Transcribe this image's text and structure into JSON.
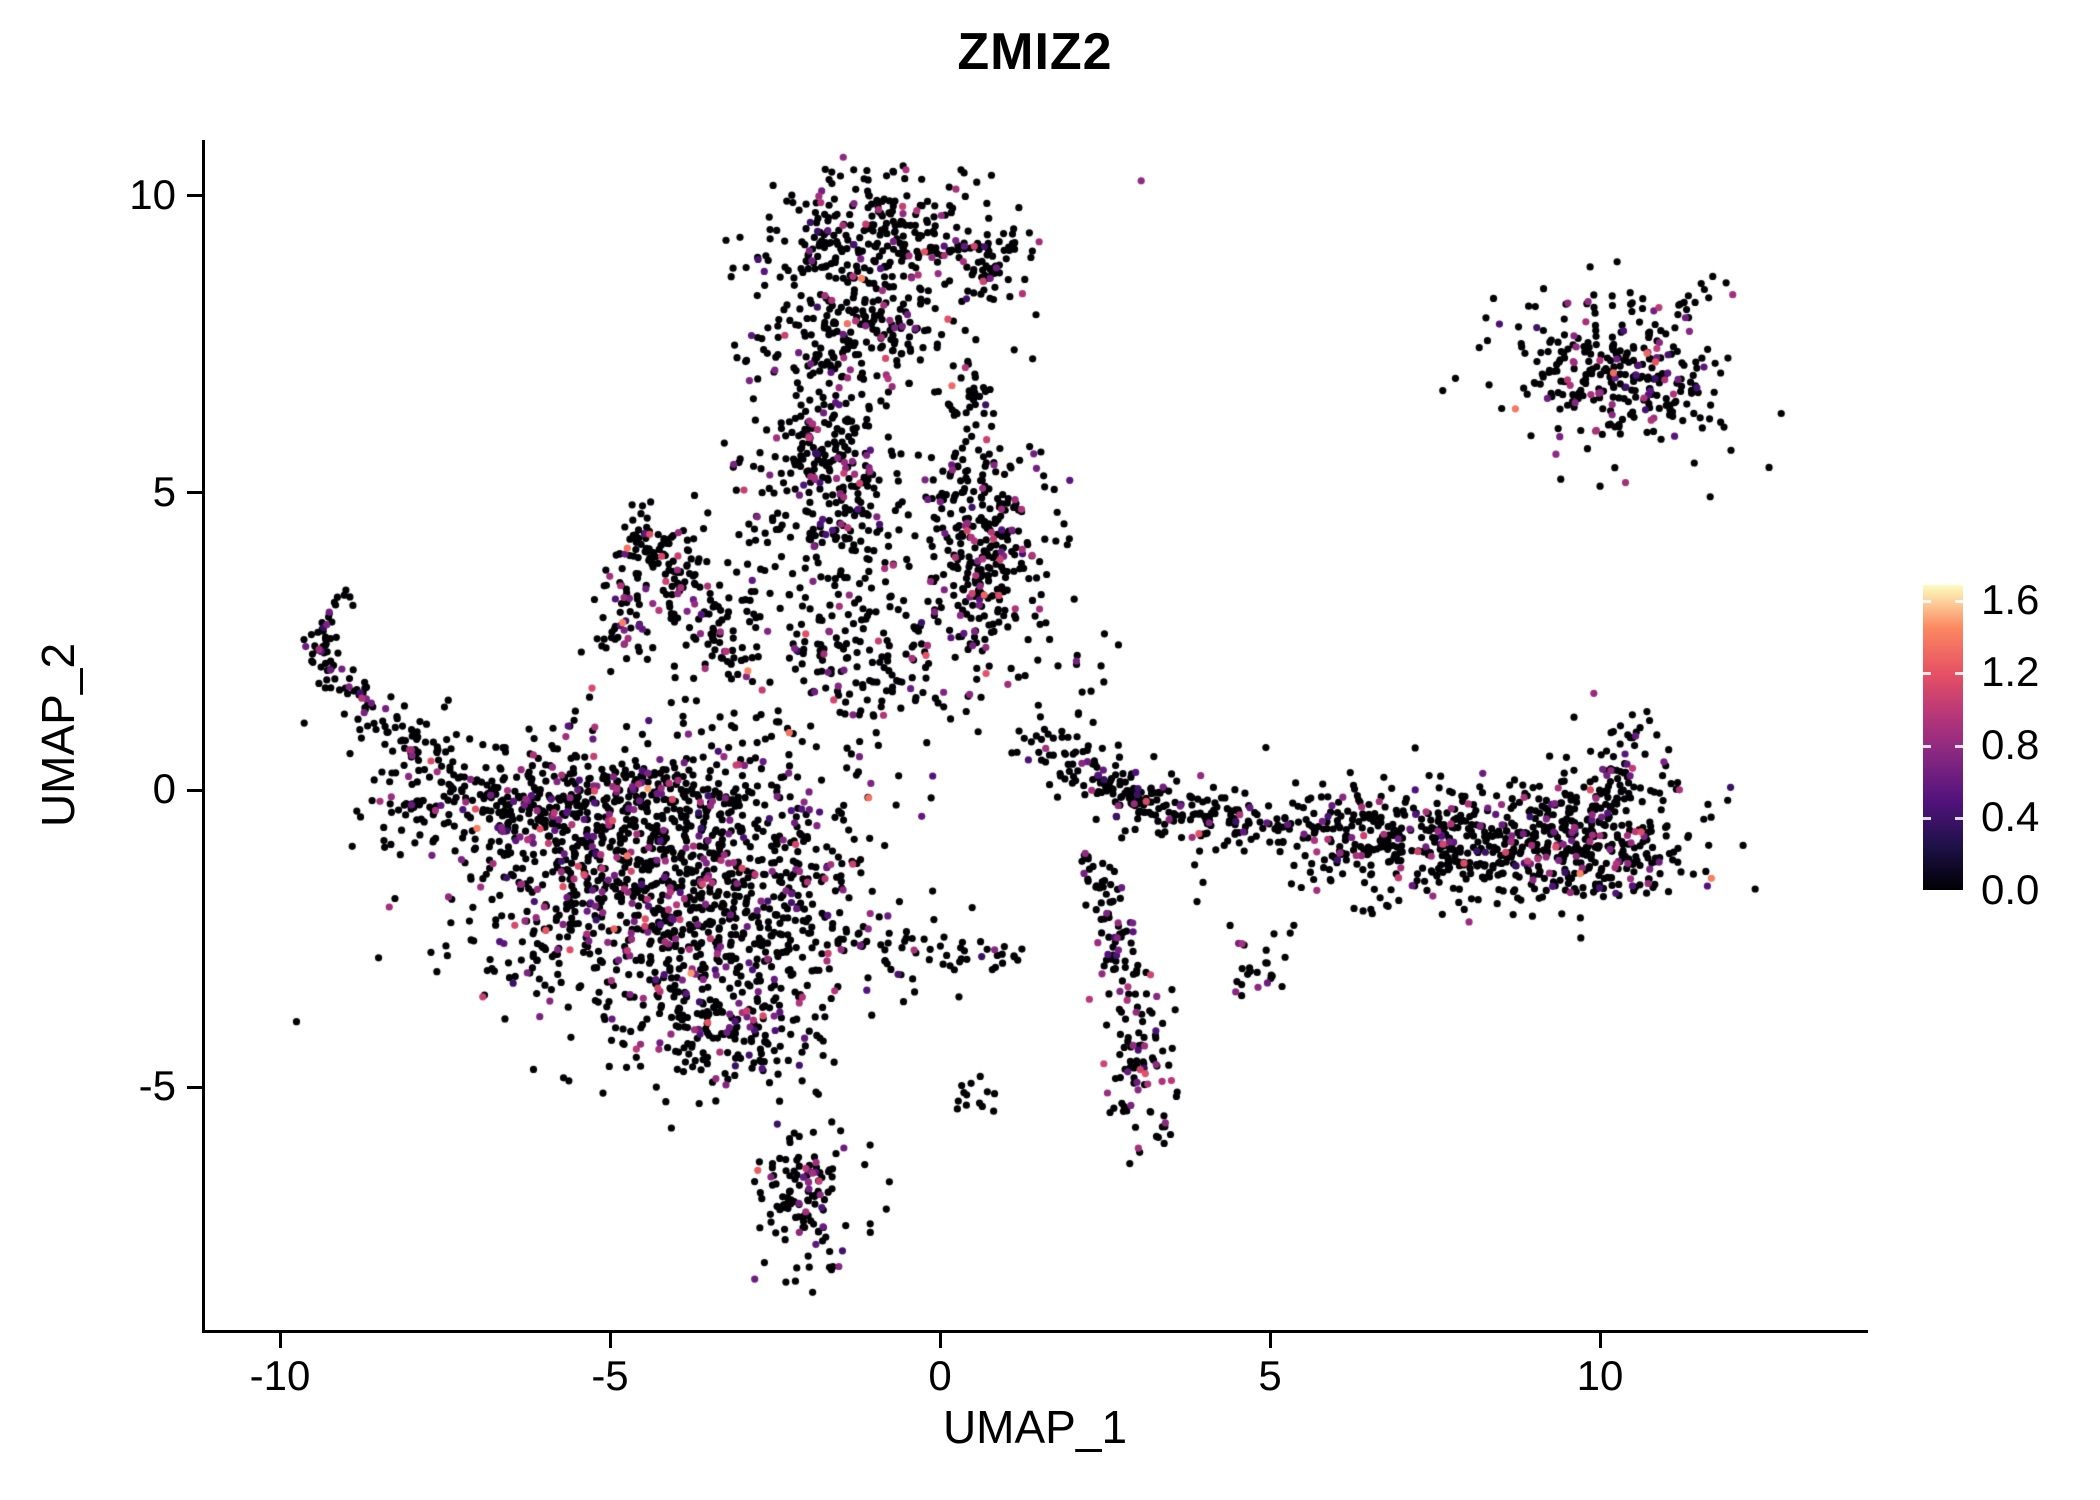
{
  "title": "ZMIZ2",
  "axes": {
    "x_label": "UMAP_1",
    "y_label": "UMAP_2",
    "x_ticks": [
      "-10",
      "-5",
      "0",
      "5",
      "10"
    ],
    "x_tick_values": [
      -10,
      -5,
      0,
      5,
      10
    ],
    "y_ticks": [
      "10",
      "5",
      "0",
      "-5"
    ],
    "y_tick_values": [
      10,
      5,
      0,
      -5
    ]
  },
  "legend": {
    "labels": [
      "1.6",
      "1.2",
      "0.8",
      "0.4",
      "0.0"
    ],
    "values": [
      1.6,
      1.2,
      0.8,
      0.4,
      0.0
    ],
    "max_value": 1.6
  },
  "chart_data": {
    "type": "scatter",
    "title": "ZMIZ2",
    "xlabel": "UMAP_1",
    "ylabel": "UMAP_2",
    "xlim": [
      -11.1,
      14.0
    ],
    "ylim": [
      -9.1,
      10.9
    ],
    "grid": false,
    "legend_position": "right",
    "seed": 42,
    "colorscale": {
      "name": "magma",
      "domain": [
        0,
        1.68
      ],
      "stops": [
        [
          0.0,
          "#000004"
        ],
        [
          0.14,
          "#1d1147"
        ],
        [
          0.29,
          "#51127c"
        ],
        [
          0.43,
          "#822681"
        ],
        [
          0.57,
          "#b63679"
        ],
        [
          0.71,
          "#e65164"
        ],
        [
          0.86,
          "#fb8861"
        ],
        [
          1.0,
          "#fcfdbf"
        ]
      ]
    },
    "zero_expression_color": "#000004",
    "clusters": [
      {
        "cx": -0.85,
        "cy": 9.3,
        "sx": 1.0,
        "sy": 0.5,
        "angle": 0,
        "n": 300,
        "frac": 0.15
      },
      {
        "cx": -1.3,
        "cy": 7.7,
        "sx": 0.8,
        "sy": 0.55,
        "angle": 0,
        "n": 210,
        "frac": 0.15
      },
      {
        "cx": -1.6,
        "cy": 5.5,
        "sx": 0.45,
        "sy": 1.0,
        "angle": 8,
        "n": 260,
        "frac": 0.16
      },
      {
        "cx": 0.4,
        "cy": 6.5,
        "sx": 0.25,
        "sy": 0.3,
        "angle": 0,
        "n": 28,
        "frac": 0.15
      },
      {
        "cx": 0.5,
        "cy": 5.1,
        "sx": 0.5,
        "sy": 0.55,
        "angle": 0,
        "n": 95,
        "frac": 0.16
      },
      {
        "cx": 0.7,
        "cy": 3.5,
        "sx": 0.5,
        "sy": 0.75,
        "angle": 0,
        "n": 230,
        "frac": 0.18
      },
      {
        "cx": -1.1,
        "cy": 2.3,
        "sx": 0.8,
        "sy": 1.0,
        "angle": 0,
        "n": 190,
        "frac": 0.15
      },
      {
        "cx": -2.6,
        "cy": 5.0,
        "sx": 0.4,
        "sy": 0.8,
        "angle": 0,
        "n": 45,
        "frac": 0.12
      },
      {
        "cx": -2.9,
        "cy": 2.8,
        "sx": 0.6,
        "sy": 0.7,
        "angle": 0,
        "n": 55,
        "frac": 0.12
      },
      {
        "cx": -4.0,
        "cy": 3.1,
        "sx": 0.55,
        "sy": 0.75,
        "angle": 0,
        "n": 45,
        "frac": 0.12
      },
      {
        "cx": -4.4,
        "cy": -1.5,
        "sx": 1.5,
        "sy": 1.15,
        "angle": -15,
        "n": 1050,
        "frac": 0.2
      },
      {
        "cx": -4.6,
        "cy": -0.25,
        "sx": 1.3,
        "sy": 0.45,
        "angle": 0,
        "n": 240,
        "frac": 0.18
      },
      {
        "cx": -3.2,
        "cy": -3.8,
        "sx": 0.8,
        "sy": 0.7,
        "angle": -20,
        "n": 230,
        "frac": 0.2
      },
      {
        "cx": -1.95,
        "cy": -6.9,
        "sx": 0.42,
        "sy": 0.62,
        "angle": 0,
        "n": 130,
        "frac": 0.22
      },
      {
        "cx": -2.3,
        "cy": -1.7,
        "sx": 0.6,
        "sy": 0.9,
        "angle": 0,
        "n": 110,
        "frac": 0.15
      },
      {
        "cx": -7.9,
        "cy": -0.3,
        "sx": 0.5,
        "sy": 0.35,
        "angle": 10,
        "n": 45,
        "frac": 0.15
      },
      {
        "cx": 1.9,
        "cy": 0.55,
        "sx": 0.38,
        "sy": 0.3,
        "angle": 0,
        "n": 45,
        "frac": 0.12
      },
      {
        "cx": 3.3,
        "cy": -0.3,
        "sx": 0.4,
        "sy": 0.3,
        "angle": 0,
        "n": 55,
        "frac": 0.12
      },
      {
        "cx": 7.4,
        "cy": -0.8,
        "sx": 1.7,
        "sy": 0.42,
        "angle": -3,
        "n": 480,
        "frac": 0.16
      },
      {
        "cx": 9.9,
        "cy": -0.75,
        "sx": 0.75,
        "sy": 0.6,
        "angle": 0,
        "n": 300,
        "frac": 0.18
      },
      {
        "cx": 8.0,
        "cy": -1.6,
        "sx": 1.2,
        "sy": 0.3,
        "angle": 0,
        "n": 55,
        "frac": 0.12
      },
      {
        "cx": 3.05,
        "cy": -4.6,
        "sx": 0.28,
        "sy": 0.75,
        "angle": 5,
        "n": 95,
        "frac": 0.22
      },
      {
        "cx": 4.8,
        "cy": -3.1,
        "sx": 0.25,
        "sy": 0.3,
        "angle": 0,
        "n": 25,
        "frac": 0.2
      },
      {
        "cx": 0.55,
        "cy": -5.15,
        "sx": 0.16,
        "sy": 0.14,
        "angle": 0,
        "n": 13,
        "frac": 0.25
      },
      {
        "cx": 10.1,
        "cy": 7.0,
        "sx": 0.85,
        "sy": 0.58,
        "angle": -20,
        "n": 290,
        "frac": 0.18
      },
      {
        "cx": 2.1,
        "cy": 1.7,
        "sx": 0.35,
        "sy": 0.5,
        "angle": 0,
        "n": 14,
        "frac": 0.1
      }
    ],
    "chains": [
      {
        "x1": 0.2,
        "y1": 9.0,
        "x2": 1.0,
        "y2": 8.5,
        "jitter": 0.22,
        "n": 40,
        "frac": 0.12
      },
      {
        "x1": -4.45,
        "y1": 4.5,
        "x2": -4.95,
        "y2": 2.4,
        "jitter": 0.18,
        "n": 75,
        "frac": 0.14
      },
      {
        "x1": -4.45,
        "y1": 4.5,
        "x2": -3.0,
        "y2": 1.9,
        "jitter": 0.2,
        "n": 95,
        "frac": 0.14
      },
      {
        "x1": -9.0,
        "y1": 3.3,
        "x2": -9.45,
        "y2": 2.3,
        "jitter": 0.12,
        "n": 30,
        "frac": 0.15
      },
      {
        "x1": -9.45,
        "y1": 2.3,
        "x2": -8.6,
        "y2": 1.3,
        "jitter": 0.15,
        "n": 40,
        "frac": 0.15
      },
      {
        "x1": -8.6,
        "y1": 1.3,
        "x2": -7.2,
        "y2": 0.2,
        "jitter": 0.28,
        "n": 75,
        "frac": 0.15
      },
      {
        "x1": -7.2,
        "y1": 0.2,
        "x2": -6.2,
        "y2": -0.5,
        "jitter": 0.3,
        "n": 60,
        "frac": 0.15
      },
      {
        "x1": -1.6,
        "y1": -2.6,
        "x2": 1.2,
        "y2": -2.9,
        "jitter": 0.18,
        "n": 55,
        "frac": 0.1
      },
      {
        "x1": 2.2,
        "y1": 0.3,
        "x2": 3.1,
        "y2": -0.2,
        "jitter": 0.18,
        "n": 55,
        "frac": 0.12
      },
      {
        "x1": 3.6,
        "y1": -0.35,
        "x2": 5.2,
        "y2": -0.55,
        "jitter": 0.2,
        "n": 70,
        "frac": 0.12
      },
      {
        "x1": 10.15,
        "y1": -0.1,
        "x2": 10.5,
        "y2": 1.2,
        "jitter": 0.14,
        "n": 40,
        "frac": 0.15
      },
      {
        "x1": 2.3,
        "y1": -1.1,
        "x2": 3.0,
        "y2": -3.4,
        "jitter": 0.18,
        "n": 70,
        "frac": 0.15
      },
      {
        "x1": 10.8,
        "y1": 7.6,
        "x2": 11.7,
        "y2": 8.4,
        "jitter": 0.12,
        "n": 14,
        "frac": 0.15
      },
      {
        "x1": 10.6,
        "y1": 6.8,
        "x2": 11.4,
        "y2": 6.1,
        "jitter": 0.12,
        "n": 18,
        "frac": 0.15
      }
    ],
    "singles": [
      [
        -6.2,
        1.0
      ],
      [
        -5.5,
        1.3
      ],
      [
        3.9,
        -1.9
      ],
      [
        4.4,
        -2.3
      ],
      [
        0.3,
        -3.5
      ],
      [
        -0.4,
        -3.2
      ],
      [
        9.4,
        5.2
      ],
      [
        2.5,
        2.6
      ],
      [
        1.5,
        1.4
      ],
      [
        -0.2,
        4.9
      ],
      [
        11.9,
        8.5
      ],
      [
        3.6,
        -5.1
      ],
      [
        3.4,
        -5.5
      ],
      [
        -6.9,
        -3.5
      ],
      [
        -0.6,
        -1.9
      ],
      [
        0.5,
        -2.0
      ],
      [
        1.1,
        0.6
      ],
      [
        12.0,
        8.3
      ],
      [
        -9.6,
        1.1
      ],
      [
        5.0,
        -0.9
      ],
      [
        9.6,
        1.2
      ],
      [
        9.9,
        1.6
      ]
    ]
  }
}
